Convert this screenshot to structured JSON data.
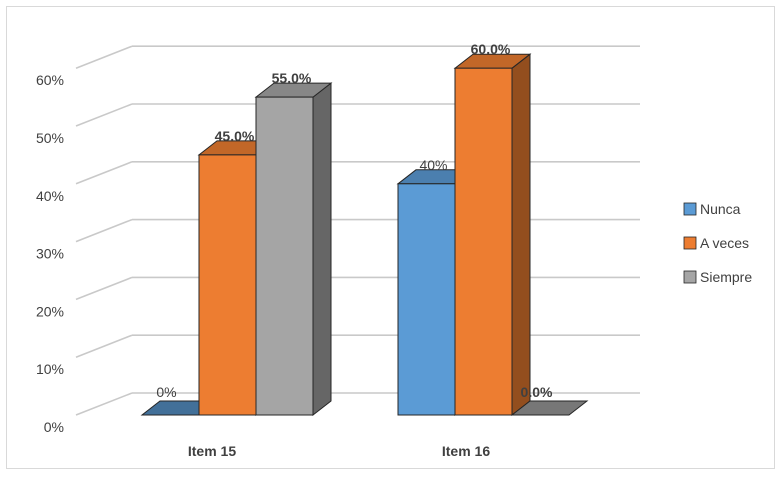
{
  "chart_data": {
    "type": "bar",
    "categories": [
      "Item 15",
      "Item 16"
    ],
    "series": [
      {
        "name": "Nunca",
        "values": [
          0,
          40
        ],
        "labels": [
          "0%",
          "40%"
        ],
        "color": "#5B9BD5"
      },
      {
        "name": "A veces",
        "values": [
          45,
          60
        ],
        "labels": [
          "45.0%",
          "60.0%"
        ],
        "color": "#ED7D31"
      },
      {
        "name": "Siempre",
        "values": [
          55,
          0
        ],
        "labels": [
          "55.0%",
          "0.0%"
        ],
        "color": "#A5A5A5"
      }
    ],
    "y_ticks": [
      "0%",
      "10%",
      "20%",
      "30%",
      "40%",
      "50%",
      "60%"
    ],
    "ylim": [
      0,
      60
    ],
    "grid": true,
    "style": "3d-column",
    "legend_position": "right"
  }
}
